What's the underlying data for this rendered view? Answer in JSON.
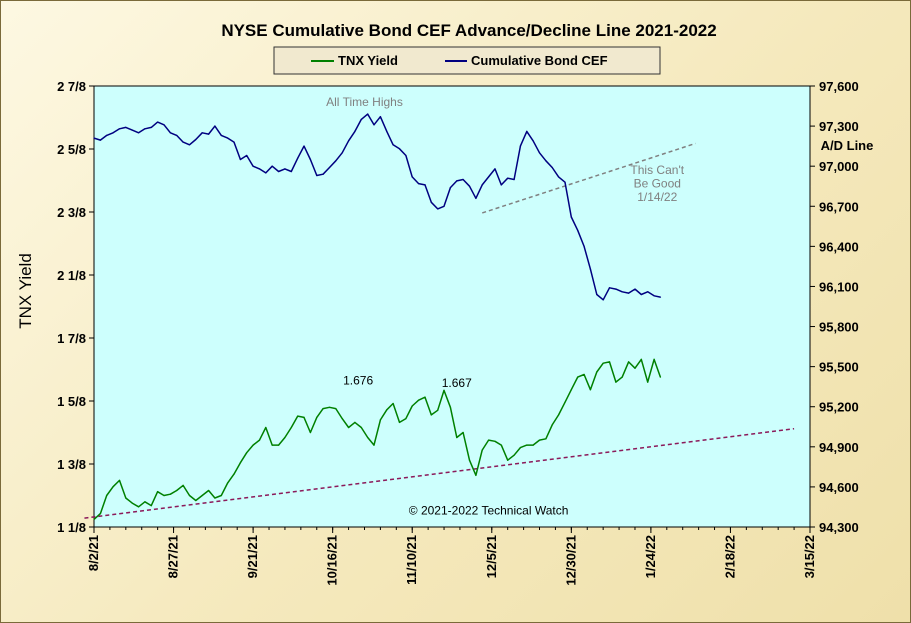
{
  "chart_data": {
    "type": "line",
    "title": "NYSE Cumulative  Bond CEF Advance/Decline  Line 2021-2022",
    "ylabel": "TNX Yield",
    "y2label": "A/D Line",
    "x_ticks": [
      "8/2/21",
      "8/27/21",
      "9/21/21",
      "10/16/21",
      "11/10/21",
      "12/5/21",
      "12/30/21",
      "1/24/22",
      "2/18/22",
      "3/15/22"
    ],
    "x_tick_days": [
      0,
      25,
      50,
      75,
      100,
      125,
      150,
      175,
      200,
      225
    ],
    "xlim_days": [
      0,
      225
    ],
    "y_ticks": [
      "1 1/8",
      "1 3/8",
      "1 5/8",
      "1 7/8",
      "2 1/8",
      "2 3/8",
      "2 5/8",
      "2 7/8"
    ],
    "ylim": [
      1.125,
      2.875
    ],
    "y2_ticks": [
      "94,300",
      "94,600",
      "94,900",
      "95,200",
      "95,500",
      "95,800",
      "96,100",
      "96,400",
      "96,700",
      "97,000",
      "97,300",
      "97,600"
    ],
    "y2lim": [
      94300,
      97600
    ],
    "colors": {
      "plot_bg": "#cdfffd",
      "tnx": "#008000",
      "cef": "#000080",
      "trend_tnx": "#8b1a5a",
      "trend_cef": "#808080",
      "annotation": "#808080"
    },
    "series": [
      {
        "name": "TNX Yield",
        "axis": "left",
        "x": [
          0,
          2,
          4,
          6,
          8,
          10,
          12,
          14,
          16,
          18,
          20,
          22,
          24,
          26,
          28,
          30,
          32,
          34,
          36,
          38,
          40,
          42,
          44,
          46,
          48,
          50,
          52,
          54,
          56,
          58,
          60,
          62,
          64,
          66,
          68,
          70,
          72,
          74,
          76,
          78,
          80,
          82,
          84,
          86,
          88,
          90,
          92,
          94,
          96,
          98,
          100,
          102,
          104,
          106,
          108,
          110,
          112,
          114,
          116,
          118,
          120,
          122,
          124,
          126,
          128,
          130,
          132,
          134,
          136,
          138,
          140,
          142,
          144,
          146,
          148,
          150,
          152,
          154,
          156,
          158,
          160,
          162,
          164,
          166,
          168,
          170,
          172,
          174,
          176,
          178
        ],
        "values": [
          1.155,
          1.178,
          1.25,
          1.285,
          1.31,
          1.24,
          1.22,
          1.205,
          1.225,
          1.21,
          1.265,
          1.25,
          1.255,
          1.27,
          1.29,
          1.25,
          1.23,
          1.25,
          1.27,
          1.24,
          1.25,
          1.3,
          1.335,
          1.38,
          1.42,
          1.45,
          1.47,
          1.52,
          1.45,
          1.45,
          1.48,
          1.52,
          1.565,
          1.56,
          1.5,
          1.56,
          1.595,
          1.6,
          1.595,
          1.555,
          1.52,
          1.54,
          1.52,
          1.48,
          1.45,
          1.55,
          1.59,
          1.615,
          1.54,
          1.555,
          1.605,
          1.628,
          1.64,
          1.57,
          1.588,
          1.667,
          1.6,
          1.48,
          1.5,
          1.39,
          1.33,
          1.43,
          1.47,
          1.465,
          1.45,
          1.39,
          1.41,
          1.44,
          1.45,
          1.45,
          1.47,
          1.475,
          1.53,
          1.57,
          1.62,
          1.67,
          1.72,
          1.73,
          1.67,
          1.74,
          1.775,
          1.78,
          1.7,
          1.72,
          1.78,
          1.755,
          1.79,
          1.7,
          1.79,
          1.72
        ]
      },
      {
        "name": "Cumulative Bond CEF",
        "axis": "right",
        "x": [
          0,
          2,
          4,
          6,
          8,
          10,
          12,
          14,
          16,
          18,
          20,
          22,
          24,
          26,
          28,
          30,
          32,
          34,
          36,
          38,
          40,
          42,
          44,
          46,
          48,
          50,
          52,
          54,
          56,
          58,
          60,
          62,
          64,
          66,
          68,
          70,
          72,
          74,
          76,
          78,
          80,
          82,
          84,
          86,
          88,
          90,
          92,
          94,
          96,
          98,
          100,
          102,
          104,
          106,
          108,
          110,
          112,
          114,
          116,
          118,
          120,
          122,
          124,
          126,
          128,
          130,
          132,
          134,
          136,
          138,
          140,
          142,
          144,
          146,
          148,
          150,
          152,
          154,
          156,
          158,
          160,
          162,
          164,
          166,
          168,
          170,
          172,
          174,
          176,
          178
        ],
        "values": [
          97210,
          97195,
          97230,
          97250,
          97280,
          97290,
          97270,
          97250,
          97280,
          97290,
          97330,
          97310,
          97250,
          97230,
          97180,
          97160,
          97200,
          97250,
          97240,
          97300,
          97230,
          97210,
          97180,
          97050,
          97080,
          97000,
          96980,
          96950,
          97000,
          96960,
          96980,
          96960,
          97060,
          97150,
          97050,
          96930,
          96940,
          96990,
          97040,
          97100,
          97190,
          97260,
          97350,
          97390,
          97310,
          97370,
          97260,
          97160,
          97130,
          97080,
          96920,
          96870,
          96860,
          96730,
          96680,
          96700,
          96840,
          96890,
          96900,
          96850,
          96760,
          96860,
          96920,
          96980,
          96860,
          96910,
          96900,
          97150,
          97260,
          97190,
          97100,
          97040,
          96990,
          96920,
          96880,
          96620,
          96520,
          96400,
          96230,
          96040,
          96000,
          96090,
          96080,
          96060,
          96050,
          96080,
          96040,
          96060,
          96030,
          96020
        ]
      }
    ],
    "annotations": [
      {
        "text": "All Time Highs",
        "x": 85,
        "y2": 97450
      },
      {
        "text": "1.676",
        "x": 83,
        "y": 1.69
      },
      {
        "text": "1.667",
        "x": 114,
        "y": 1.68
      },
      {
        "text": "This Can't",
        "x": 177,
        "y2": 96940
      },
      {
        "text": "Be Good",
        "x": 177,
        "y2": 96840
      },
      {
        "text": "1/14/22",
        "x": 177,
        "y2": 96740
      },
      {
        "text": "© 2021-2022  Technical  Watch",
        "x": 124,
        "y": 1.175
      }
    ],
    "trendlines": [
      {
        "axis": "left",
        "x": [
          -3,
          220
        ],
        "y": [
          1.16,
          1.515
        ]
      },
      {
        "axis": "right",
        "x": [
          122,
          189
        ],
        "y2": [
          96650,
          97170
        ]
      }
    ],
    "grid": false,
    "legend_position": "top-center"
  }
}
